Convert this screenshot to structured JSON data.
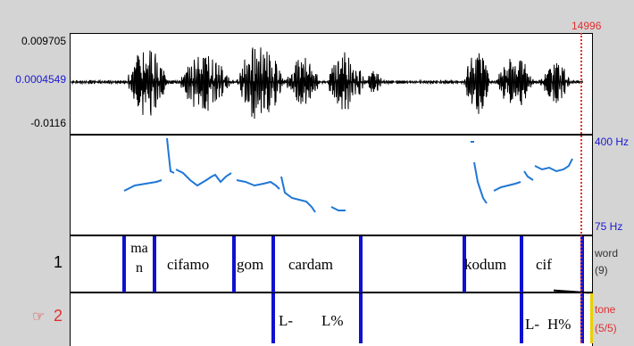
{
  "cursor_sample": "14996",
  "waveform": {
    "y_max": "0.009705",
    "y_mid": "0.0004549",
    "y_min": "-0.0116"
  },
  "pitch": {
    "max_label": "400 Hz",
    "min_label": "75 Hz"
  },
  "tiers": [
    {
      "number": "1",
      "name": "word",
      "count": "(9)",
      "labels": [
        "ma\nn",
        "cifamo",
        "gom",
        "cardam",
        "kodum",
        "cif"
      ]
    },
    {
      "number": "2",
      "pointer": "☞",
      "name": "tone",
      "count": "(5/5)",
      "labels": [
        "L-",
        "L%",
        "L-",
        "H%"
      ]
    }
  ],
  "colors": {
    "boundary": "#1010d0",
    "pitch_track": "#1f77d6",
    "cursor": "#e03030",
    "side_label": "#1a1ad0"
  }
}
